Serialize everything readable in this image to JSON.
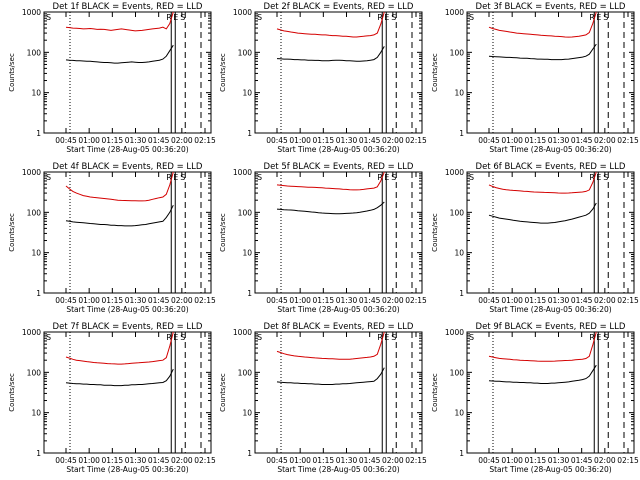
{
  "chart_data": [
    {
      "type": "line",
      "title": "Det 1f BLACK = Events, RED = LLD",
      "xlabel": "Start Time (28-Aug-05 00:36:20)",
      "ylabel": "Counts/sec",
      "x_ticks": [
        "00:45",
        "01:00",
        "01:15",
        "01:30",
        "01:45",
        "02:00",
        "02:15"
      ],
      "y_ticks": [
        "1",
        "10",
        "100",
        "1000"
      ],
      "y_scale": "log",
      "ylim": [
        1,
        1000
      ],
      "markers": [
        "S",
        "R",
        "E",
        "S"
      ],
      "series": [
        {
          "name": "RED = LLD",
          "color": "#d40000",
          "values": [
            420,
            410,
            400,
            395,
            390,
            380,
            385,
            390,
            380,
            370,
            375,
            370,
            360,
            350,
            360,
            370,
            380,
            370,
            360,
            350,
            340,
            345,
            350,
            360,
            370,
            380,
            390,
            400,
            420,
            380,
            520,
            1000
          ]
        },
        {
          "name": "BLACK = Events",
          "color": "#000000",
          "values": [
            65,
            64,
            63,
            62,
            62,
            61,
            60,
            60,
            59,
            58,
            57,
            56,
            56,
            55,
            54,
            54,
            55,
            56,
            57,
            58,
            57,
            56,
            56,
            57,
            58,
            60,
            62,
            64,
            68,
            80,
            110,
            150
          ]
        }
      ]
    },
    {
      "type": "line",
      "title": "Det 2f BLACK = Events, RED = LLD",
      "xlabel": "Start Time (28-Aug-05 00:36:20)",
      "ylabel": "Counts/sec",
      "x_ticks": [
        "00:45",
        "01:00",
        "01:15",
        "01:30",
        "01:45",
        "02:00",
        "02:15"
      ],
      "y_ticks": [
        "1",
        "10",
        "100",
        "1000"
      ],
      "y_scale": "log",
      "ylim": [
        1,
        1000
      ],
      "markers": [
        "S",
        "R",
        "E",
        "S"
      ],
      "series": [
        {
          "name": "RED = LLD",
          "color": "#d40000",
          "values": [
            380,
            360,
            340,
            330,
            320,
            310,
            300,
            295,
            290,
            285,
            280,
            280,
            275,
            270,
            270,
            265,
            260,
            260,
            255,
            250,
            250,
            245,
            240,
            240,
            245,
            250,
            255,
            260,
            270,
            300,
            500,
            1000
          ]
        },
        {
          "name": "BLACK = Events",
          "color": "#000000",
          "values": [
            70,
            69,
            68,
            68,
            67,
            66,
            66,
            65,
            65,
            64,
            64,
            63,
            63,
            62,
            62,
            62,
            63,
            64,
            64,
            63,
            62,
            62,
            61,
            60,
            60,
            61,
            62,
            64,
            66,
            75,
            100,
            140
          ]
        }
      ]
    },
    {
      "type": "line",
      "title": "Det 3f BLACK = Events, RED = LLD",
      "xlabel": "Start Time (28-Aug-05 00:36:20)",
      "ylabel": "Counts/sec",
      "x_ticks": [
        "00:45",
        "01:00",
        "01:15",
        "01:30",
        "01:45",
        "02:00",
        "02:15"
      ],
      "y_ticks": [
        "1",
        "10",
        "100",
        "1000"
      ],
      "y_scale": "log",
      "ylim": [
        1,
        1000
      ],
      "markers": [
        "S",
        "R",
        "E",
        "S"
      ],
      "series": [
        {
          "name": "RED = LLD",
          "color": "#d40000",
          "values": [
            420,
            390,
            370,
            350,
            340,
            330,
            320,
            310,
            300,
            295,
            290,
            285,
            280,
            275,
            270,
            265,
            262,
            258,
            255,
            250,
            248,
            245,
            240,
            238,
            240,
            245,
            250,
            260,
            270,
            310,
            520,
            1000
          ]
        },
        {
          "name": "BLACK = Events",
          "color": "#000000",
          "values": [
            80,
            79,
            78,
            77,
            76,
            75,
            75,
            74,
            73,
            72,
            71,
            71,
            70,
            69,
            68,
            68,
            67,
            67,
            66,
            66,
            66,
            66,
            67,
            68,
            70,
            72,
            74,
            76,
            80,
            90,
            120,
            160
          ]
        }
      ]
    },
    {
      "type": "line",
      "title": "Det 4f BLACK = Events, RED = LLD",
      "xlabel": "Start Time (28-Aug-05 00:36:20)",
      "ylabel": "Counts/sec",
      "x_ticks": [
        "00:45",
        "01:00",
        "01:15",
        "01:30",
        "01:45",
        "02:00",
        "02:15"
      ],
      "y_ticks": [
        "1",
        "10",
        "100",
        "1000"
      ],
      "y_scale": "log",
      "ylim": [
        1,
        1000
      ],
      "markers": [
        "S",
        "R",
        "E",
        "S"
      ],
      "series": [
        {
          "name": "RED = LLD",
          "color": "#d40000",
          "values": [
            450,
            380,
            330,
            300,
            280,
            260,
            250,
            240,
            235,
            230,
            225,
            220,
            215,
            210,
            205,
            200,
            198,
            196,
            195,
            194,
            193,
            192,
            192,
            194,
            200,
            210,
            220,
            230,
            240,
            280,
            480,
            1000
          ]
        },
        {
          "name": "BLACK = Events",
          "color": "#000000",
          "values": [
            62,
            60,
            58,
            57,
            56,
            55,
            54,
            53,
            52,
            51,
            50,
            50,
            49,
            48,
            48,
            47,
            47,
            46,
            46,
            46,
            47,
            48,
            49,
            50,
            52,
            54,
            56,
            58,
            60,
            75,
            100,
            150
          ]
        }
      ]
    },
    {
      "type": "line",
      "title": "Det 5f BLACK = Events, RED = LLD",
      "xlabel": "Start Time (28-Aug-05 00:36:20)",
      "ylabel": "Counts/sec",
      "x_ticks": [
        "00:45",
        "01:00",
        "01:15",
        "01:30",
        "01:45",
        "02:00",
        "02:15"
      ],
      "y_ticks": [
        "1",
        "10",
        "100",
        "1000"
      ],
      "y_scale": "log",
      "ylim": [
        1,
        1000
      ],
      "markers": [
        "S",
        "R",
        "E",
        "S"
      ],
      "series": [
        {
          "name": "RED = LLD",
          "color": "#d40000",
          "values": [
            480,
            470,
            460,
            450,
            445,
            440,
            435,
            430,
            425,
            420,
            418,
            415,
            410,
            405,
            400,
            395,
            390,
            385,
            380,
            375,
            370,
            365,
            360,
            360,
            365,
            370,
            380,
            390,
            400,
            430,
            600,
            1000
          ]
        },
        {
          "name": "BLACK = Events",
          "color": "#000000",
          "values": [
            120,
            118,
            116,
            115,
            114,
            112,
            110,
            108,
            106,
            104,
            102,
            100,
            98,
            96,
            95,
            94,
            93,
            92,
            92,
            93,
            94,
            95,
            96,
            98,
            100,
            104,
            108,
            112,
            118,
            130,
            150,
            180
          ]
        }
      ]
    },
    {
      "type": "line",
      "title": "Det 6f BLACK = Events, RED = LLD",
      "xlabel": "Start Time (28-Aug-05 00:36:20)",
      "ylabel": "Counts/sec",
      "x_ticks": [
        "00:45",
        "01:00",
        "01:15",
        "01:30",
        "01:45",
        "02:00",
        "02:15"
      ],
      "y_ticks": [
        "1",
        "10",
        "100",
        "1000"
      ],
      "y_scale": "log",
      "ylim": [
        1,
        1000
      ],
      "markers": [
        "S",
        "R",
        "E",
        "S"
      ],
      "series": [
        {
          "name": "RED = LLD",
          "color": "#d40000",
          "values": [
            480,
            440,
            410,
            390,
            375,
            365,
            355,
            350,
            345,
            340,
            335,
            330,
            325,
            320,
            318,
            315,
            312,
            310,
            308,
            305,
            302,
            300,
            300,
            302,
            305,
            310,
            315,
            320,
            330,
            360,
            550,
            1000
          ]
        },
        {
          "name": "BLACK = Events",
          "color": "#000000",
          "values": [
            85,
            80,
            76,
            72,
            70,
            68,
            66,
            64,
            62,
            60,
            59,
            58,
            57,
            56,
            55,
            54,
            54,
            54,
            55,
            56,
            58,
            60,
            62,
            65,
            68,
            72,
            76,
            80,
            85,
            95,
            120,
            170
          ]
        }
      ]
    },
    {
      "type": "line",
      "title": "Det 7f BLACK = Events, RED = LLD",
      "xlabel": "Start Time (28-Aug-05 00:36:20)",
      "ylabel": "Counts/sec",
      "x_ticks": [
        "00:45",
        "01:00",
        "01:15",
        "01:30",
        "01:45",
        "02:00",
        "02:15"
      ],
      "y_ticks": [
        "1",
        "10",
        "100",
        "1000"
      ],
      "y_scale": "log",
      "ylim": [
        1,
        1000
      ],
      "markers": [
        "S",
        "R",
        "E",
        "S"
      ],
      "series": [
        {
          "name": "RED = LLD",
          "color": "#d40000",
          "values": [
            240,
            225,
            210,
            200,
            195,
            190,
            185,
            180,
            175,
            172,
            170,
            168,
            165,
            163,
            162,
            160,
            160,
            162,
            165,
            168,
            170,
            172,
            175,
            178,
            180,
            185,
            190,
            195,
            200,
            230,
            450,
            1000
          ]
        },
        {
          "name": "BLACK = Events",
          "color": "#000000",
          "values": [
            55,
            54,
            53,
            52,
            52,
            51,
            51,
            50,
            50,
            49,
            49,
            48,
            48,
            48,
            47,
            47,
            47,
            48,
            48,
            49,
            49,
            50,
            50,
            51,
            52,
            53,
            54,
            55,
            56,
            62,
            80,
            120
          ]
        }
      ]
    },
    {
      "type": "line",
      "title": "Det 8f BLACK = Events, RED = LLD",
      "xlabel": "Start Time (28-Aug-05 00:36:20)",
      "ylabel": "Counts/sec",
      "x_ticks": [
        "00:45",
        "01:00",
        "01:15",
        "01:30",
        "01:45",
        "02:00",
        "02:15"
      ],
      "y_ticks": [
        "1",
        "10",
        "100",
        "1000"
      ],
      "y_scale": "log",
      "ylim": [
        1,
        1000
      ],
      "markers": [
        "S",
        "R",
        "E",
        "S"
      ],
      "series": [
        {
          "name": "RED = LLD",
          "color": "#d40000",
          "values": [
            330,
            310,
            290,
            275,
            265,
            255,
            250,
            245,
            240,
            236,
            232,
            228,
            225,
            222,
            220,
            218,
            216,
            214,
            212,
            210,
            210,
            212,
            215,
            220,
            225,
            230,
            235,
            240,
            250,
            280,
            500,
            1000
          ]
        },
        {
          "name": "BLACK = Events",
          "color": "#000000",
          "values": [
            58,
            57,
            56,
            55,
            55,
            54,
            54,
            53,
            53,
            52,
            52,
            51,
            51,
            50,
            50,
            50,
            50,
            51,
            51,
            52,
            52,
            53,
            54,
            55,
            56,
            57,
            58,
            59,
            60,
            70,
            90,
            130
          ]
        }
      ]
    },
    {
      "type": "line",
      "title": "Det 9f BLACK = Events, RED = LLD",
      "xlabel": "Start Time (28-Aug-05 00:36:20)",
      "ylabel": "Counts/sec",
      "x_ticks": [
        "00:45",
        "01:00",
        "01:15",
        "01:30",
        "01:45",
        "02:00",
        "02:15"
      ],
      "y_ticks": [
        "1",
        "10",
        "100",
        "1000"
      ],
      "y_scale": "log",
      "ylim": [
        1,
        1000
      ],
      "markers": [
        "S",
        "R",
        "E",
        "S"
      ],
      "series": [
        {
          "name": "RED = LLD",
          "color": "#d40000",
          "values": [
            250,
            240,
            230,
            222,
            218,
            214,
            210,
            206,
            203,
            200,
            198,
            196,
            194,
            192,
            190,
            189,
            188,
            188,
            189,
            190,
            192,
            194,
            196,
            198,
            200,
            204,
            208,
            212,
            220,
            250,
            480,
            1000
          ]
        },
        {
          "name": "BLACK = Events",
          "color": "#000000",
          "values": [
            62,
            61,
            60,
            60,
            59,
            58,
            58,
            57,
            57,
            56,
            56,
            55,
            55,
            54,
            54,
            53,
            53,
            53,
            54,
            54,
            55,
            56,
            57,
            58,
            60,
            62,
            64,
            66,
            70,
            80,
            110,
            150
          ]
        }
      ]
    }
  ]
}
